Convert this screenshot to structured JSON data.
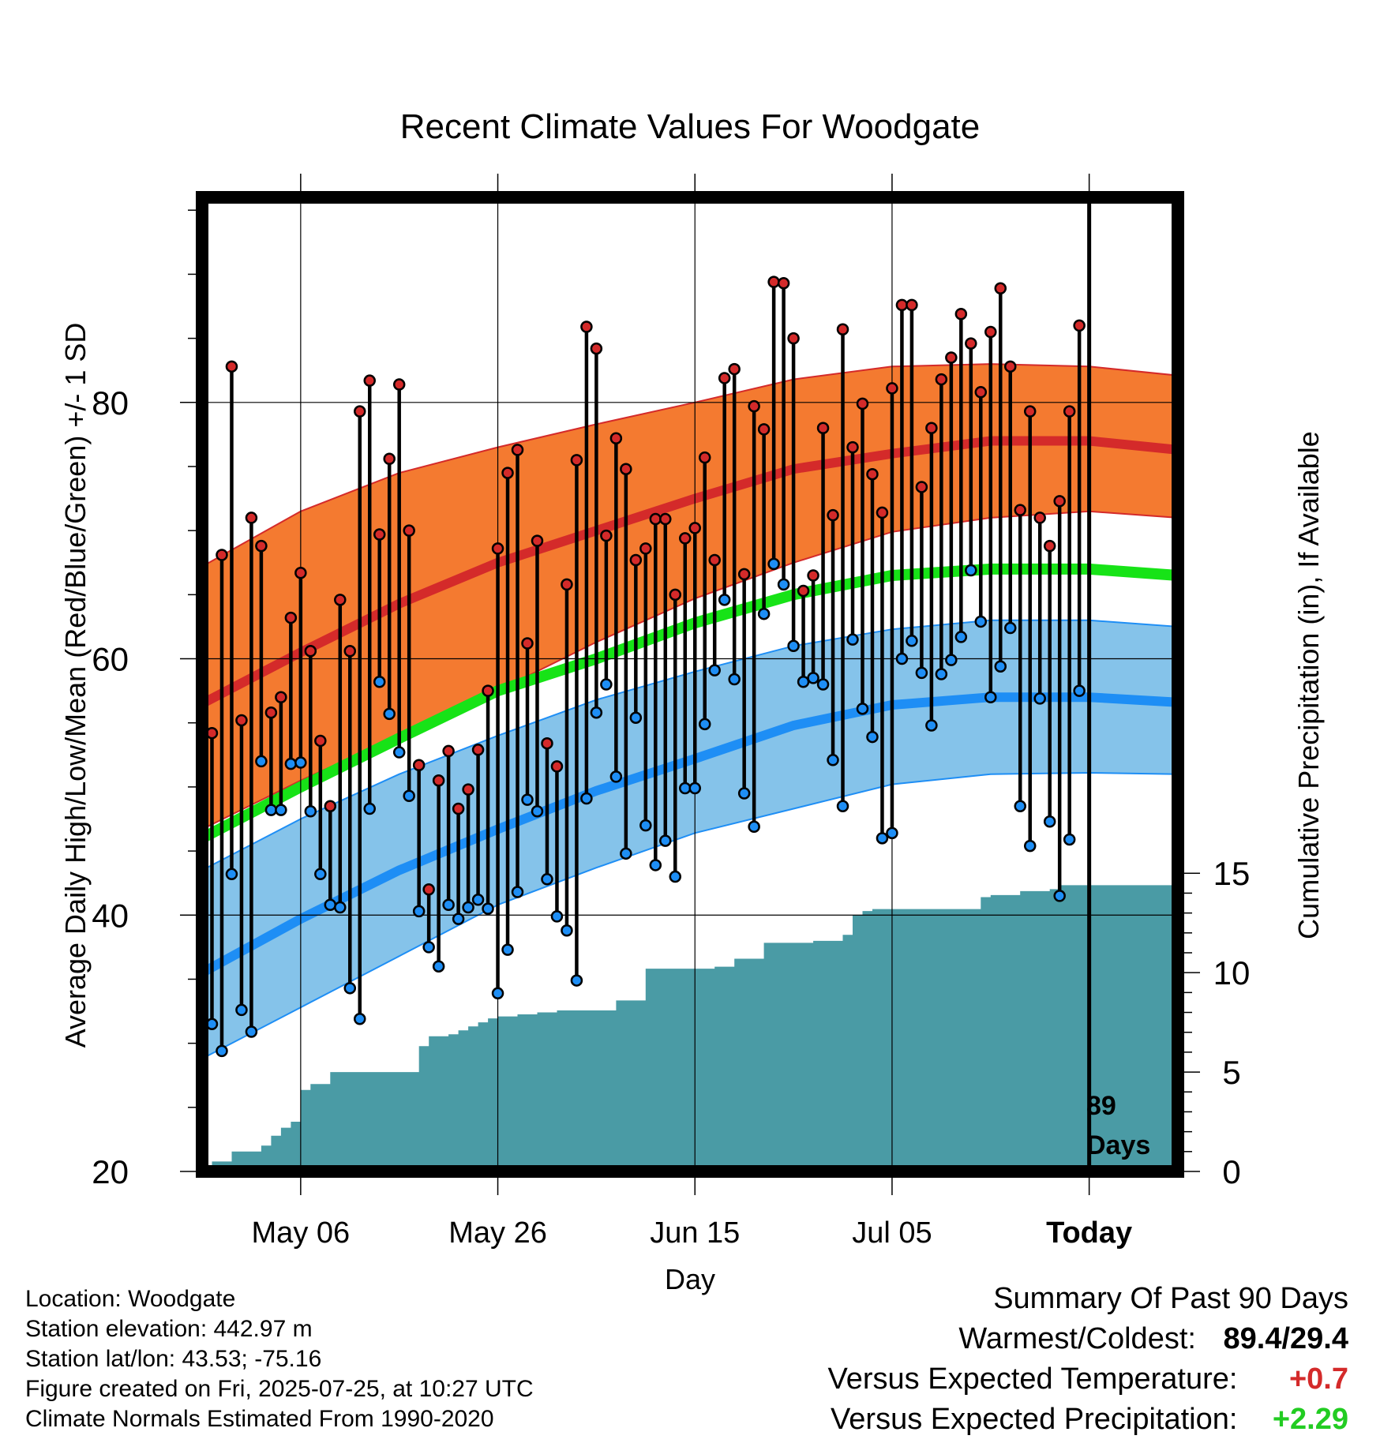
{
  "chart_data": {
    "type": "line",
    "title": "Recent Climate Values For Woodgate",
    "xlabel": "Day",
    "ylabel": "Average Daily High/Low/Mean (Red/Blue/Green) +/- 1 SD",
    "y2label": "Cumulative Precipitation (in), If Available",
    "x_tick_labels": [
      "May 06",
      "May 26",
      "Jun 15",
      "Jul 05",
      "Today"
    ],
    "x_tick_days": [
      10,
      30,
      50,
      70,
      90
    ],
    "xlim_days": [
      0,
      99
    ],
    "ylim": [
      20,
      96
    ],
    "y_ticks": [
      20,
      40,
      60,
      80
    ],
    "y2lim": [
      0,
      49
    ],
    "y2_ticks": [
      0,
      5,
      10,
      15
    ],
    "today_marker_label": [
      "89",
      "Days"
    ],
    "colors": {
      "high": "#d42a2a",
      "high_band": "#f47a30",
      "low": "#1e8ef5",
      "low_band": "#85c3ea",
      "mean": "#17e317",
      "precip": "#4a9ba5"
    },
    "normals": {
      "x_days": [
        0,
        10,
        20,
        30,
        40,
        50,
        60,
        70,
        80,
        90,
        99
      ],
      "high_mean": [
        56.5,
        60.5,
        64.3,
        67.5,
        70.0,
        72.5,
        74.8,
        76.0,
        77.0,
        77.0,
        76.3
      ],
      "high_upper": [
        67.2,
        71.5,
        74.5,
        76.5,
        78.3,
        80.0,
        81.8,
        82.8,
        83.0,
        82.8,
        82.1
      ],
      "high_lower": [
        46.7,
        50.5,
        54.0,
        57.5,
        61.3,
        64.7,
        67.5,
        69.9,
        71.0,
        71.5,
        71.0
      ],
      "mean": [
        46.0,
        50.0,
        53.8,
        57.5,
        60.0,
        62.8,
        65.0,
        66.5,
        67.0,
        67.0,
        66.5
      ],
      "low_mean": [
        35.5,
        39.7,
        43.5,
        46.7,
        49.7,
        52.2,
        54.8,
        56.4,
        57.0,
        57.0,
        56.6
      ],
      "low_upper": [
        43.5,
        47.5,
        51.0,
        54.0,
        56.8,
        59.0,
        61.0,
        62.3,
        63.0,
        63.0,
        62.5
      ],
      "low_lower": [
        28.8,
        32.8,
        36.8,
        40.8,
        43.7,
        46.4,
        48.3,
        50.2,
        51.0,
        51.1,
        51.0
      ]
    },
    "highs": [
      61.3,
      54.2,
      68.1,
      82.8,
      55.2,
      71.0,
      68.8,
      55.8,
      57.0,
      63.2,
      66.7,
      60.6,
      53.6,
      48.5,
      64.6,
      60.6,
      79.3,
      81.7,
      69.7,
      75.6,
      81.4,
      70.0,
      51.7,
      42.0,
      50.5,
      52.8,
      48.3,
      49.8,
      52.9,
      57.5,
      68.6,
      74.5,
      76.3,
      61.2,
      69.2,
      53.4,
      51.6,
      65.8,
      75.5,
      85.9,
      84.2,
      69.6,
      77.2,
      74.8,
      67.7,
      68.6,
      70.9,
      70.9,
      65.0,
      69.4,
      70.2,
      75.7,
      67.7,
      81.9,
      82.6,
      66.6,
      79.7,
      77.9,
      89.4,
      89.3,
      85.0,
      65.3,
      66.5,
      78.0,
      71.2,
      85.7,
      76.5,
      79.9,
      74.4,
      71.4,
      81.1,
      87.6,
      87.6,
      73.4,
      78.0,
      81.8,
      83.5,
      86.9,
      84.6,
      80.8,
      85.5,
      88.9,
      82.8,
      71.6,
      79.3,
      71.0,
      68.8,
      72.3,
      79.3,
      86.0
    ],
    "lows": [
      35.5,
      31.5,
      29.4,
      43.2,
      32.6,
      30.9,
      52.0,
      48.2,
      48.2,
      51.8,
      51.9,
      48.1,
      43.2,
      40.8,
      40.6,
      34.3,
      31.9,
      48.3,
      58.2,
      55.7,
      52.7,
      49.3,
      40.3,
      37.5,
      36.0,
      40.8,
      39.7,
      40.6,
      41.2,
      40.5,
      33.9,
      37.3,
      41.8,
      49.0,
      48.1,
      42.8,
      39.9,
      38.8,
      34.9,
      49.1,
      55.8,
      58.0,
      50.8,
      44.8,
      55.4,
      47.0,
      43.9,
      45.8,
      43.0,
      49.9,
      49.9,
      54.9,
      59.1,
      64.6,
      58.4,
      49.5,
      46.9,
      63.5,
      67.4,
      65.8,
      61.0,
      58.2,
      58.5,
      58.0,
      52.1,
      48.5,
      61.5,
      56.1,
      53.9,
      46.0,
      46.4,
      60.0,
      61.4,
      58.9,
      54.8,
      58.8,
      59.9,
      61.7,
      66.9,
      62.9,
      57.0,
      59.4,
      62.4,
      48.5,
      45.4,
      56.9,
      47.3,
      41.5,
      45.9,
      57.5
    ],
    "precip_cumulative": {
      "x_days": [
        0,
        1,
        2,
        3,
        4,
        5,
        6,
        7,
        8,
        9,
        10,
        11,
        12,
        13,
        14,
        15,
        16,
        17,
        18,
        19,
        20,
        21,
        22,
        23,
        24,
        25,
        26,
        27,
        28,
        29,
        30,
        31,
        32,
        33,
        34,
        35,
        36,
        37,
        38,
        39,
        40,
        41,
        42,
        43,
        44,
        45,
        46,
        47,
        48,
        49,
        50,
        51,
        52,
        53,
        54,
        55,
        56,
        57,
        58,
        59,
        60,
        61,
        62,
        63,
        64,
        65,
        66,
        67,
        68,
        69,
        70,
        71,
        72,
        73,
        74,
        75,
        76,
        77,
        78,
        79,
        80,
        81,
        82,
        83,
        84,
        85,
        86,
        87,
        88,
        89,
        90,
        91,
        92,
        93,
        94,
        95,
        96,
        97,
        98,
        99
      ],
      "values": [
        0.3,
        0.5,
        0.5,
        1.0,
        1.0,
        1.0,
        1.3,
        1.8,
        2.2,
        2.5,
        4.1,
        4.4,
        4.4,
        5.0,
        5.0,
        5.0,
        5.0,
        5.0,
        5.0,
        5.0,
        5.0,
        5.0,
        6.3,
        6.8,
        6.8,
        6.9,
        7.1,
        7.3,
        7.5,
        7.7,
        7.8,
        7.8,
        7.9,
        7.9,
        8.0,
        8.0,
        8.1,
        8.1,
        8.1,
        8.1,
        8.1,
        8.1,
        8.6,
        8.6,
        8.6,
        10.2,
        10.2,
        10.2,
        10.2,
        10.2,
        10.2,
        10.2,
        10.3,
        10.3,
        10.7,
        10.7,
        10.7,
        11.5,
        11.5,
        11.5,
        11.5,
        11.5,
        11.6,
        11.6,
        11.6,
        11.9,
        12.9,
        13.1,
        13.2,
        13.2,
        13.2,
        13.2,
        13.2,
        13.2,
        13.2,
        13.2,
        13.2,
        13.2,
        13.2,
        13.8,
        13.9,
        13.9,
        13.9,
        14.1,
        14.1,
        14.1,
        14.2,
        14.4,
        14.4,
        14.4,
        14.4,
        14.4,
        14.4,
        14.4,
        14.4,
        14.4,
        14.4,
        14.4,
        14.4,
        14.4
      ]
    }
  },
  "info": {
    "location": "Location: Woodgate",
    "elevation": "Station elevation: 442.97 m",
    "latlon": "Station lat/lon: 43.53; -75.16",
    "created": "Figure created on Fri, 2025-07-25, at 10:27 UTC",
    "normals_period": "Climate Normals Estimated From 1990-2020"
  },
  "summary": {
    "title": "Summary Of Past 90 Days",
    "warmest_coldest_label": "Warmest/Coldest:",
    "warmest_coldest_value": "89.4/29.4",
    "temp_label": "Versus Expected Temperature:",
    "temp_value": "+0.7",
    "temp_color": "#d42a2a",
    "precip_label": "Versus Expected Precipitation:",
    "precip_value": "+2.29",
    "precip_color": "#22cc22"
  }
}
